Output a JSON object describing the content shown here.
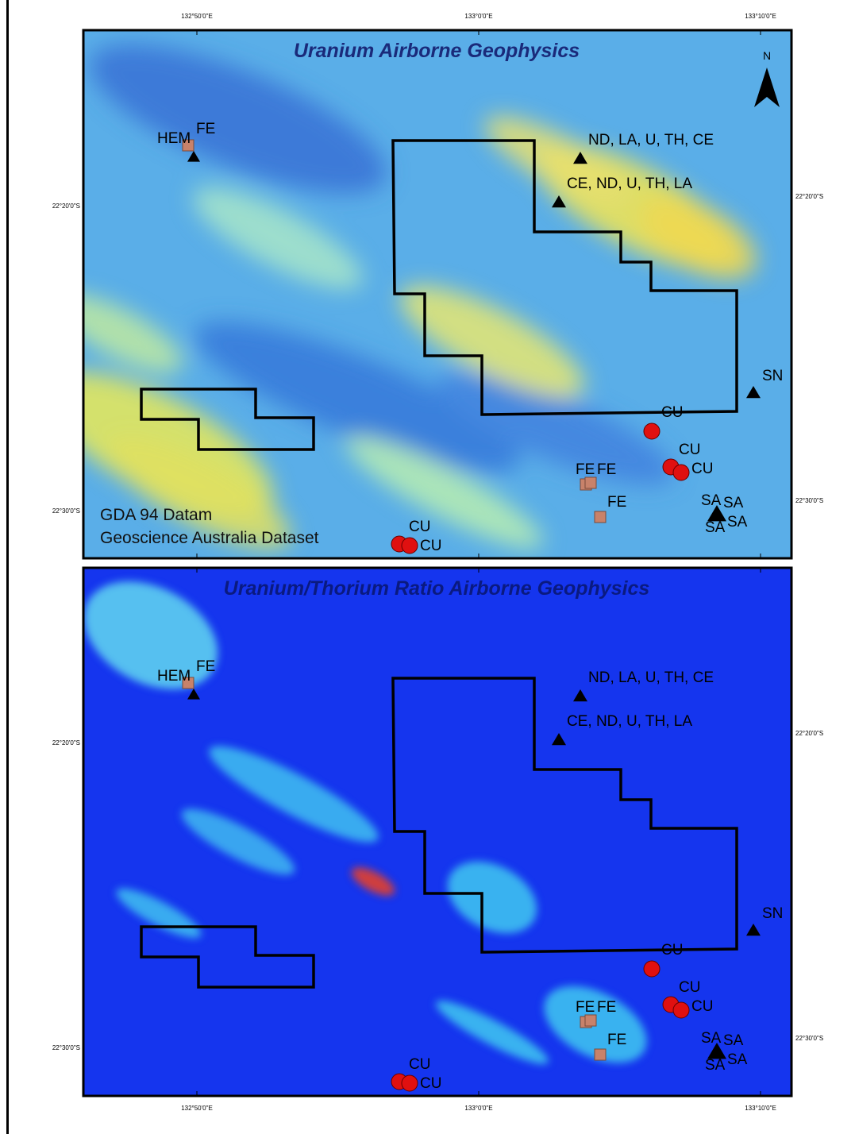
{
  "lon_labels": [
    "132°50'0\"E",
    "133°0'0\"E",
    "133°10'0\"E"
  ],
  "lat_labels": [
    "22°20'0\"S",
    "22°30'0\"S"
  ],
  "north": "N",
  "panels": [
    {
      "title": "Uranium Airborne Geophysics",
      "notes": [
        "GDA 94 Datam",
        "Geoscience Australia Dataset"
      ],
      "labels": [
        "HEM",
        "FE",
        "ND, LA, U, TH, CE",
        "CE, ND, U, TH, LA",
        "SN",
        "CU",
        "CU",
        "CU",
        "FE",
        "FE",
        "FE",
        "SA",
        "SA",
        "SA",
        "SA",
        "CU",
        "CU"
      ]
    },
    {
      "title": "Uranium/Thorium Ratio Airborne Geophysics",
      "labels": [
        "HEM",
        "FE",
        "ND, LA, U, TH, CE",
        "CE, ND, U, TH, LA",
        "SN",
        "CU",
        "CU",
        "CU",
        "FE",
        "FE",
        "FE",
        "SA",
        "SA",
        "SA",
        "SA",
        "CU",
        "CU"
      ]
    }
  ]
}
